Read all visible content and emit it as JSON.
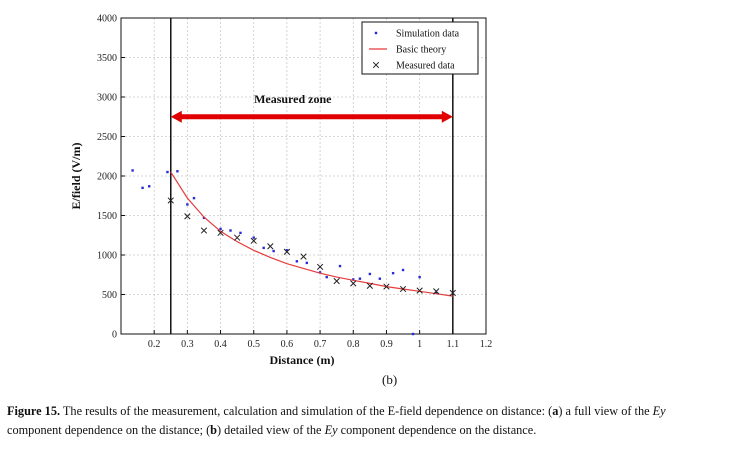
{
  "chart_data": {
    "type": "scatter",
    "xlabel": "Distance (m)",
    "ylabel": "E/field (V/m)",
    "xlim": [
      0.1,
      1.2
    ],
    "ylim": [
      0,
      4000
    ],
    "xticks": [
      "0.2",
      "0.3",
      "0.4",
      "0.5",
      "0.6",
      "0.7",
      "0.8",
      "0.9",
      "1",
      "1.1",
      "1.2"
    ],
    "xtick_values": [
      0.2,
      0.3,
      0.4,
      0.5,
      0.6,
      0.7,
      0.8,
      0.9,
      1.0,
      1.1,
      1.2
    ],
    "yticks": [
      "0",
      "500",
      "1000",
      "1500",
      "2000",
      "2500",
      "3000",
      "3500",
      "4000"
    ],
    "ytick_values": [
      0,
      500,
      1000,
      1500,
      2000,
      2500,
      3000,
      3500,
      4000
    ],
    "grid": true,
    "legend_position": "top-right",
    "annotation": {
      "text": "Measured zone",
      "x_start": 0.25,
      "x_end": 1.1,
      "y": 2750,
      "color": "#e00000"
    },
    "vlines": [
      0.25,
      1.1
    ],
    "series": [
      {
        "name": "Simulation data",
        "marker": "dot",
        "color": "#2b2bd6",
        "points": [
          [
            0.135,
            2070
          ],
          [
            0.165,
            1850
          ],
          [
            0.185,
            1870
          ],
          [
            0.24,
            2050
          ],
          [
            0.27,
            2060
          ],
          [
            0.3,
            1640
          ],
          [
            0.32,
            1720
          ],
          [
            0.35,
            1470
          ],
          [
            0.4,
            1330
          ],
          [
            0.43,
            1310
          ],
          [
            0.46,
            1280
          ],
          [
            0.5,
            1220
          ],
          [
            0.53,
            1090
          ],
          [
            0.56,
            1050
          ],
          [
            0.6,
            1060
          ],
          [
            0.63,
            920
          ],
          [
            0.66,
            900
          ],
          [
            0.7,
            780
          ],
          [
            0.72,
            720
          ],
          [
            0.76,
            860
          ],
          [
            0.8,
            690
          ],
          [
            0.82,
            700
          ],
          [
            0.85,
            760
          ],
          [
            0.88,
            700
          ],
          [
            0.92,
            770
          ],
          [
            0.95,
            810
          ],
          [
            0.98,
            0
          ],
          [
            1.0,
            720
          ],
          [
            1.05,
            520
          ]
        ]
      },
      {
        "name": "Basic theory",
        "marker": "line",
        "color": "#e63b3b",
        "points": [
          [
            0.25,
            2050
          ],
          [
            0.3,
            1720
          ],
          [
            0.35,
            1480
          ],
          [
            0.4,
            1300
          ],
          [
            0.45,
            1170
          ],
          [
            0.5,
            1060
          ],
          [
            0.55,
            970
          ],
          [
            0.6,
            890
          ],
          [
            0.65,
            830
          ],
          [
            0.7,
            770
          ],
          [
            0.75,
            720
          ],
          [
            0.8,
            680
          ],
          [
            0.85,
            640
          ],
          [
            0.9,
            600
          ],
          [
            0.95,
            570
          ],
          [
            1.0,
            540
          ],
          [
            1.05,
            510
          ],
          [
            1.1,
            480
          ]
        ]
      },
      {
        "name": "Measured data",
        "marker": "x",
        "color": "#222222",
        "points": [
          [
            0.25,
            1690
          ],
          [
            0.3,
            1490
          ],
          [
            0.35,
            1310
          ],
          [
            0.4,
            1280
          ],
          [
            0.45,
            1220
          ],
          [
            0.5,
            1180
          ],
          [
            0.55,
            1110
          ],
          [
            0.6,
            1040
          ],
          [
            0.65,
            980
          ],
          [
            0.7,
            850
          ],
          [
            0.75,
            670
          ],
          [
            0.8,
            640
          ],
          [
            0.85,
            610
          ],
          [
            0.9,
            600
          ],
          [
            0.95,
            570
          ],
          [
            1.0,
            550
          ],
          [
            1.05,
            540
          ],
          [
            1.1,
            520
          ]
        ]
      }
    ]
  },
  "panel_label": "(b)",
  "caption": {
    "lead": "Figure 15.",
    "t1": " The results of the measurement, calculation and simulation of the E-field dependence on distance: (",
    "a": "a",
    "t2": ") a full view of the ",
    "ey1": "Ey",
    "t3": " component dependence on the distance; (",
    "b": "b",
    "t4": ") detailed view of the ",
    "ey2": "Ey",
    "t5": " component dependence on the distance."
  }
}
